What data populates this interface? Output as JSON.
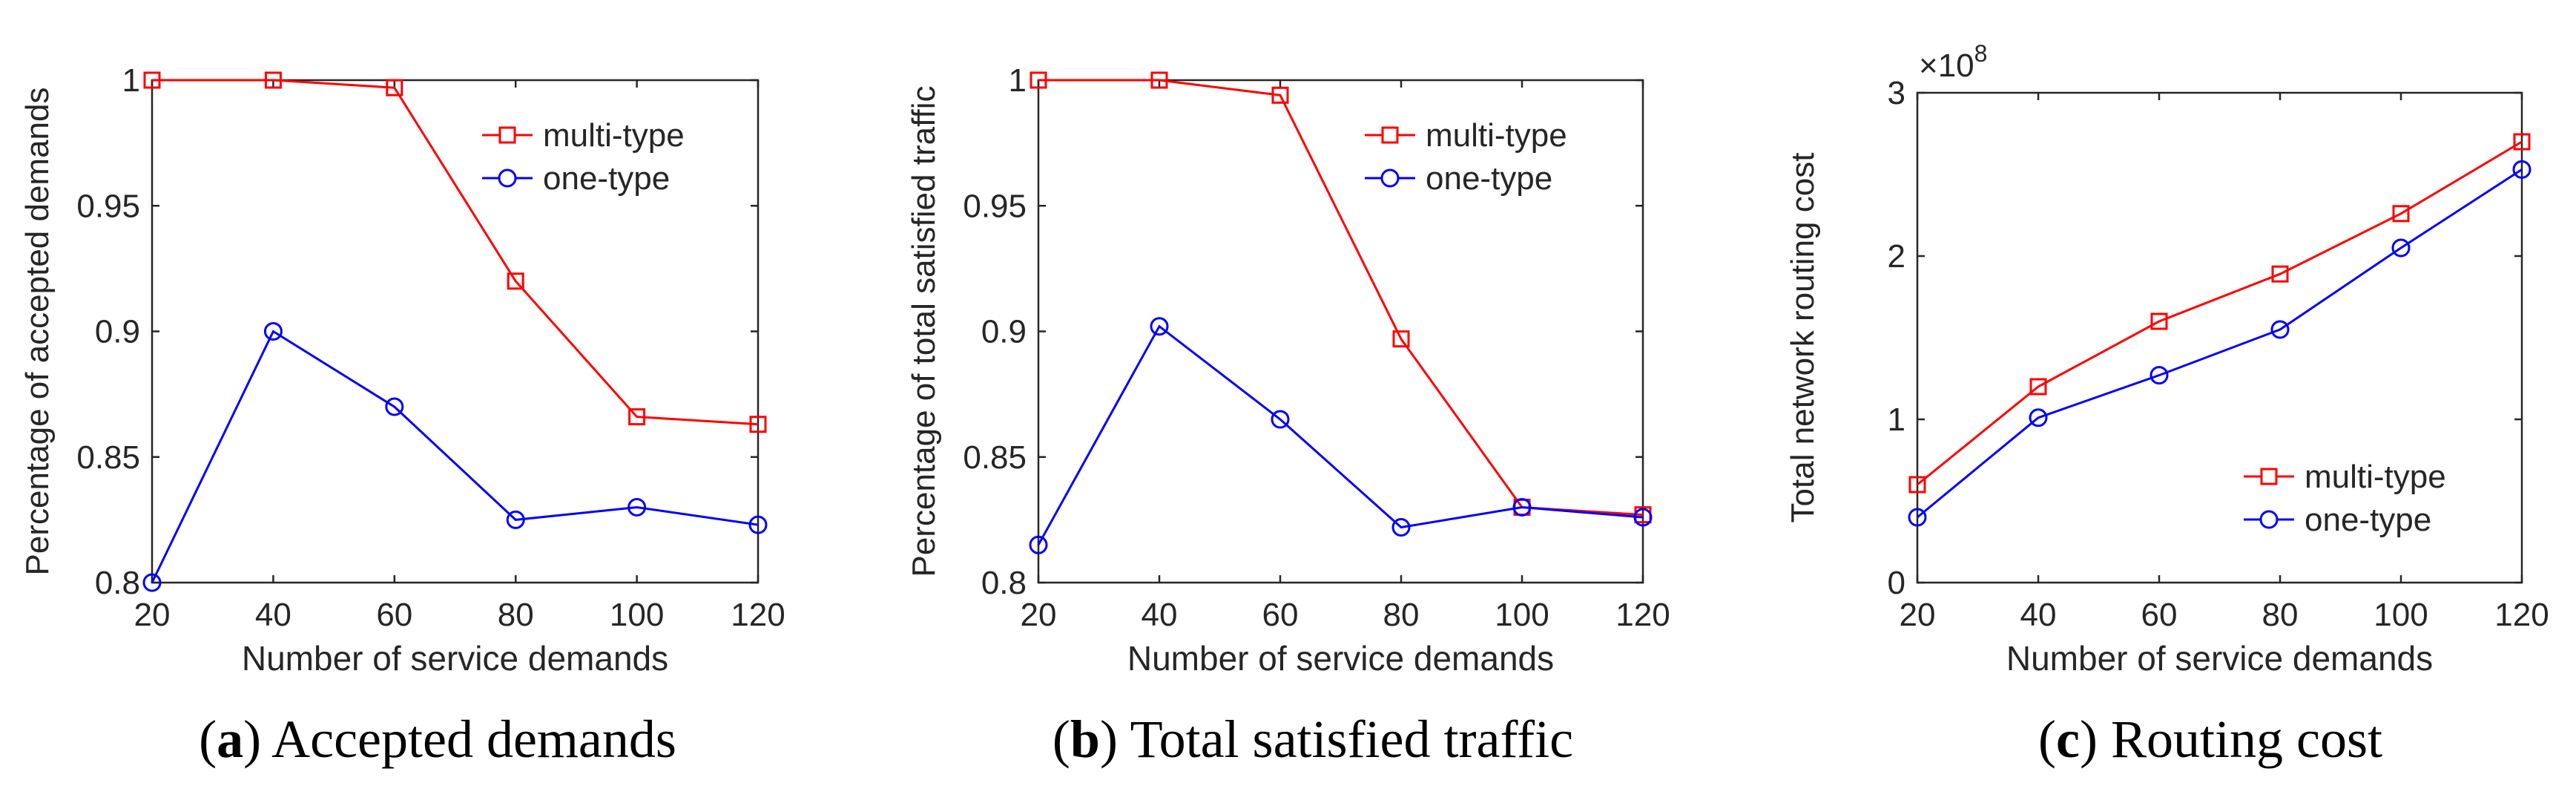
{
  "chart_data": [
    {
      "type": "line",
      "title": "",
      "xlabel": "Number of service demands",
      "ylabel": "Percentage of accepted demands",
      "x": [
        20,
        40,
        60,
        80,
        100,
        120
      ],
      "xlim": [
        20,
        120
      ],
      "ylim": [
        0.8,
        1.0
      ],
      "xticks": [
        20,
        40,
        60,
        80,
        100,
        120
      ],
      "yticks": [
        0.8,
        0.85,
        0.9,
        0.95,
        1.0
      ],
      "ytick_labels": [
        "0.8",
        "0.85",
        "0.9",
        "0.95",
        "1"
      ],
      "xtick_labels": [
        "20",
        "40",
        "60",
        "80",
        "100",
        "120"
      ],
      "exponent_label": "",
      "grid": false,
      "legend_position": "top-right",
      "series": [
        {
          "name": "multi-type",
          "color": "#ff0000",
          "marker": "square",
          "values": [
            1.0,
            1.0,
            0.997,
            0.92,
            0.866,
            0.863
          ]
        },
        {
          "name": "one-type",
          "color": "#0000ff",
          "marker": "circle",
          "values": [
            0.8,
            0.9,
            0.87,
            0.825,
            0.83,
            0.823
          ]
        }
      ],
      "caption_letter": "a",
      "caption_text": "Accepted demands"
    },
    {
      "type": "line",
      "title": "",
      "xlabel": "Number of service demands",
      "ylabel": "Percentage of total satisfied traffic",
      "x": [
        20,
        40,
        60,
        80,
        100,
        120
      ],
      "xlim": [
        20,
        120
      ],
      "ylim": [
        0.8,
        1.0
      ],
      "xticks": [
        20,
        40,
        60,
        80,
        100,
        120
      ],
      "yticks": [
        0.8,
        0.85,
        0.9,
        0.95,
        1.0
      ],
      "ytick_labels": [
        "0.8",
        "0.85",
        "0.9",
        "0.95",
        "1"
      ],
      "xtick_labels": [
        "20",
        "40",
        "60",
        "80",
        "100",
        "120"
      ],
      "exponent_label": "",
      "grid": false,
      "legend_position": "top-right",
      "series": [
        {
          "name": "multi-type",
          "color": "#ff0000",
          "marker": "square",
          "values": [
            1.0,
            1.0,
            0.994,
            0.897,
            0.83,
            0.827
          ]
        },
        {
          "name": "one-type",
          "color": "#0000ff",
          "marker": "circle",
          "values": [
            0.815,
            0.902,
            0.865,
            0.822,
            0.83,
            0.826
          ]
        }
      ],
      "caption_letter": "b",
      "caption_text": "Total satisfied traffic"
    },
    {
      "type": "line",
      "title": "",
      "xlabel": "Number of service demands",
      "ylabel": "Total network routing cost",
      "x": [
        20,
        40,
        60,
        80,
        100,
        120
      ],
      "xlim": [
        20,
        120
      ],
      "ylim": [
        0,
        3
      ],
      "xticks": [
        20,
        40,
        60,
        80,
        100,
        120
      ],
      "yticks": [
        0,
        1,
        2,
        3
      ],
      "ytick_labels": [
        "0",
        "1",
        "2",
        "3"
      ],
      "xtick_labels": [
        "20",
        "40",
        "60",
        "80",
        "100",
        "120"
      ],
      "exponent_label": "×10",
      "exponent_power": "8",
      "grid": false,
      "legend_position": "bottom-right",
      "series": [
        {
          "name": "multi-type",
          "color": "#ff0000",
          "marker": "square",
          "values": [
            0.6,
            1.2,
            1.6,
            1.89,
            2.26,
            2.7
          ]
        },
        {
          "name": "one-type",
          "color": "#0000ff",
          "marker": "circle",
          "values": [
            0.4,
            1.01,
            1.27,
            1.55,
            2.05,
            2.53
          ]
        }
      ],
      "caption_letter": "c",
      "caption_text": "Routing cost"
    }
  ]
}
